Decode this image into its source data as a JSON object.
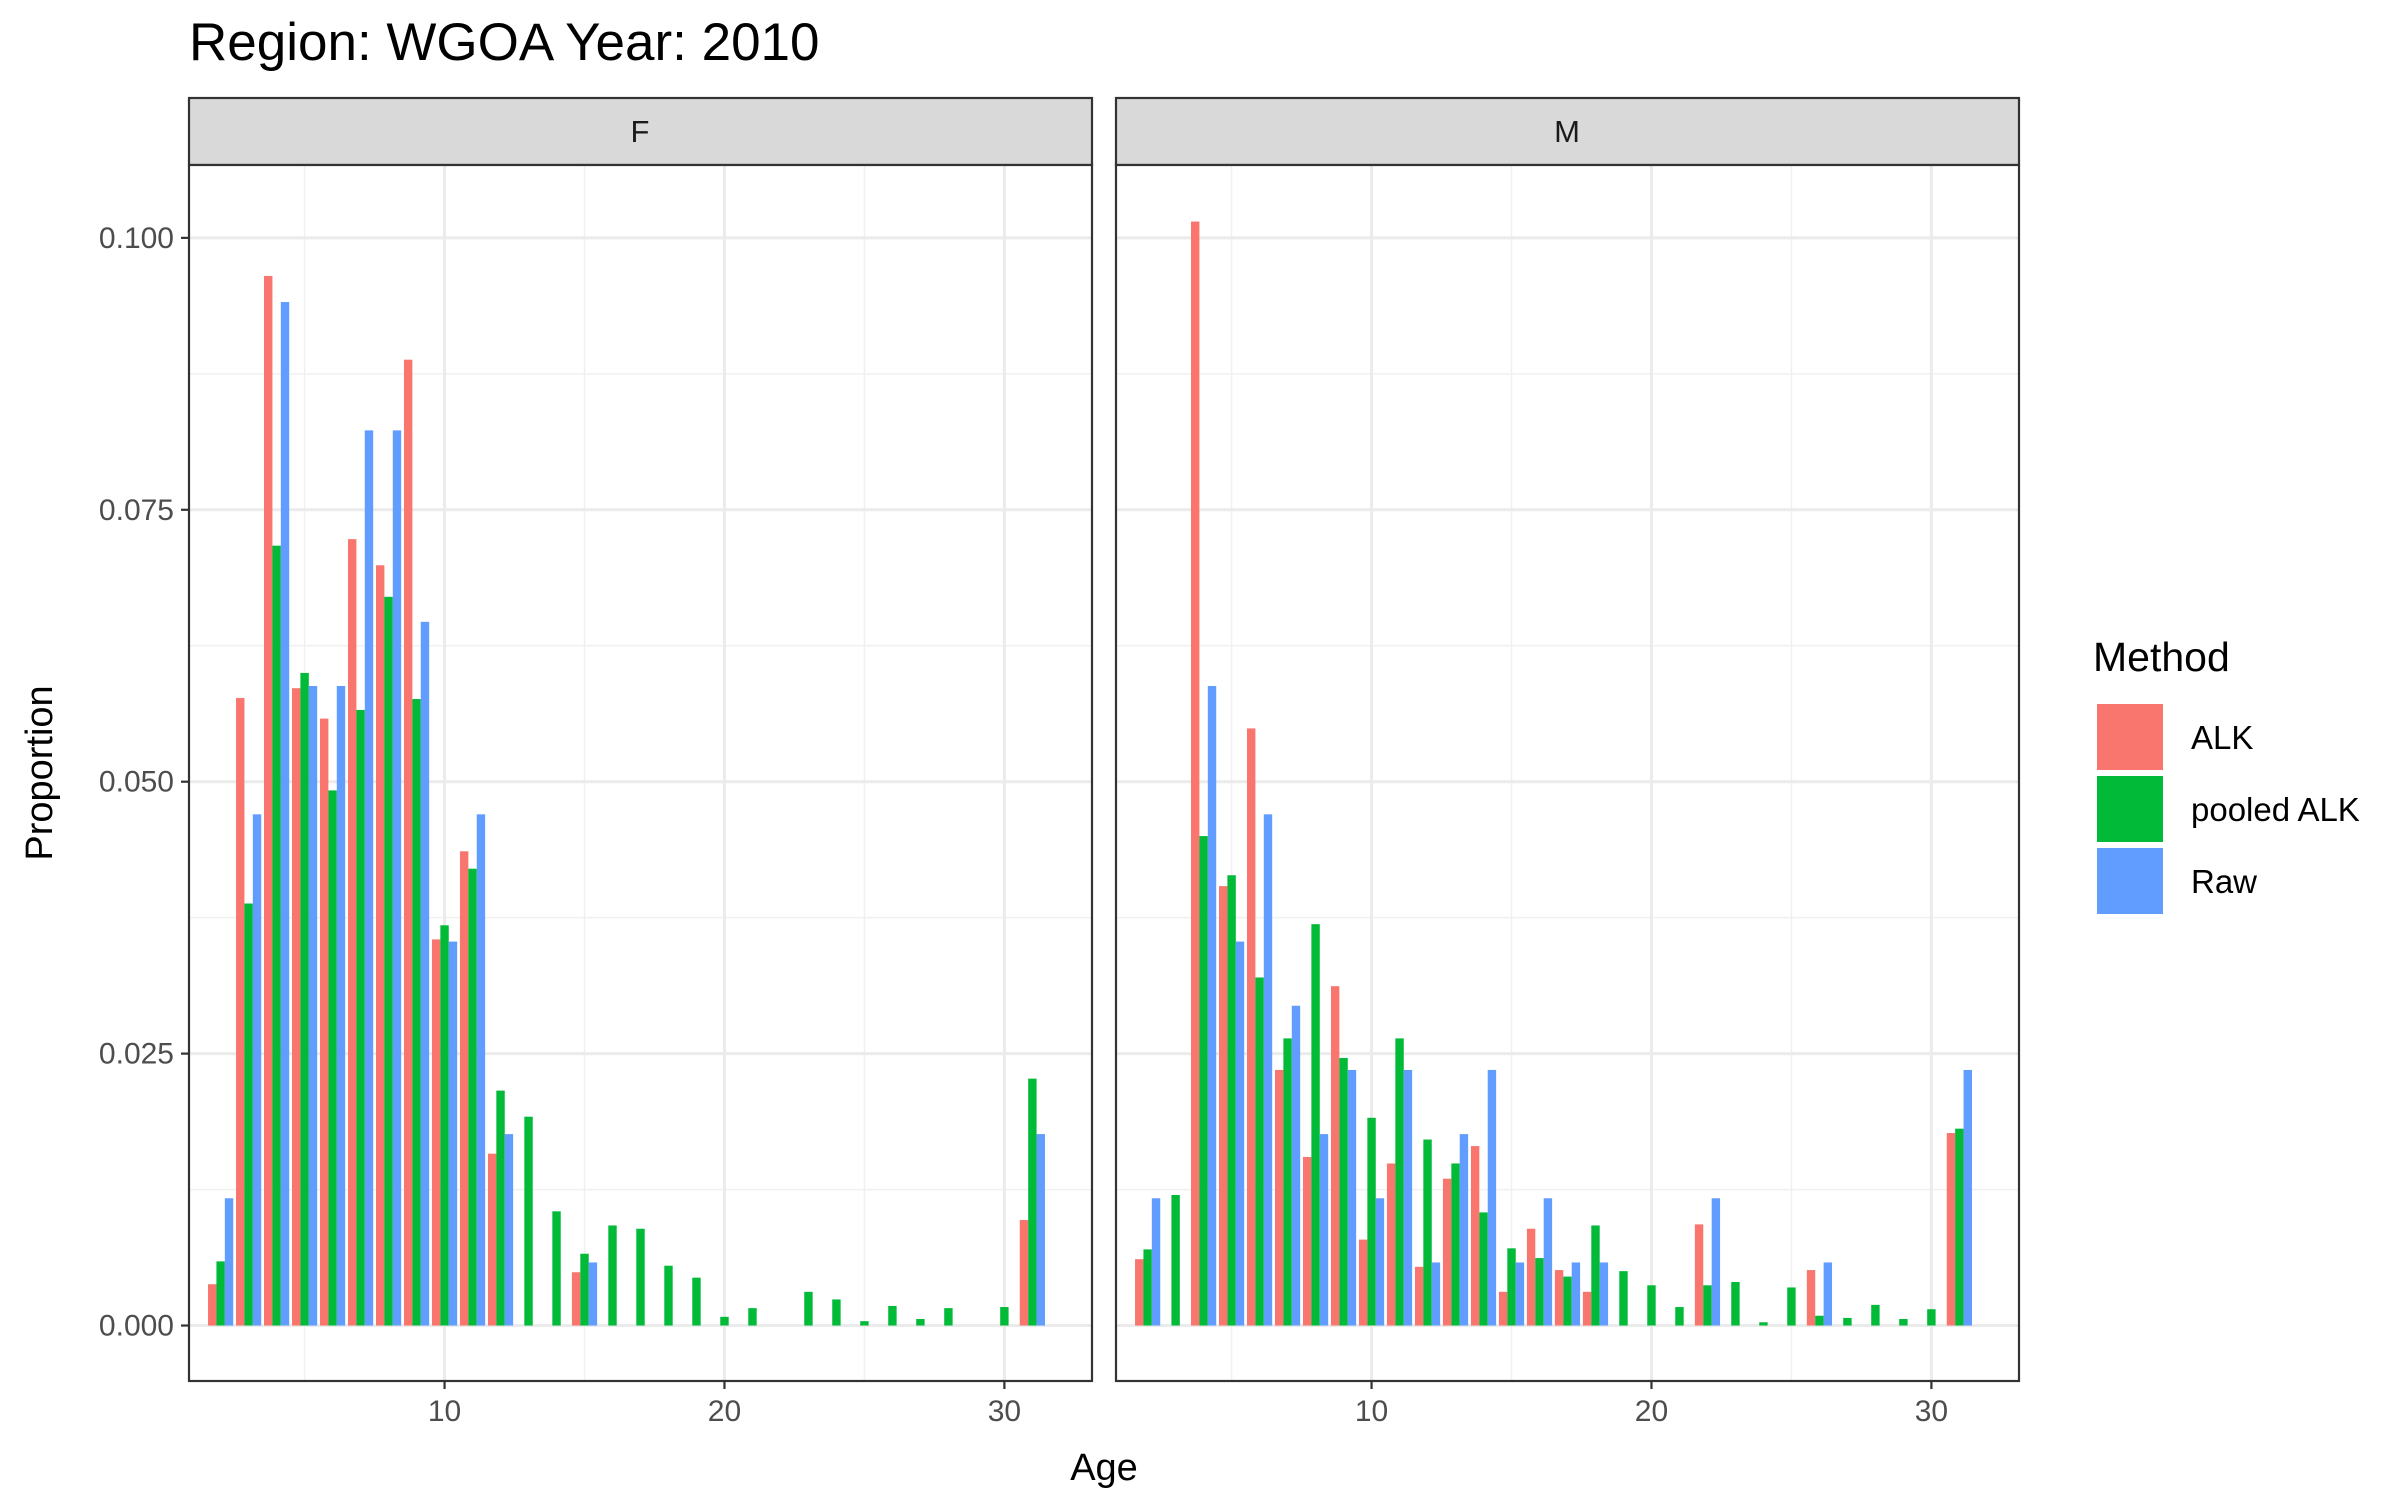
{
  "chart_data": {
    "type": "bar",
    "title": "Region: WGOA Year: 2010",
    "xlabel": "Age",
    "ylabel": "Proportion",
    "xlim": [
      0.87,
      33.13
    ],
    "ylim": [
      -0.0051,
      0.1067
    ],
    "x_ticks": [
      10,
      20,
      30
    ],
    "x_tick_labels": [
      "10",
      "20",
      "30"
    ],
    "y_ticks": [
      0,
      0.025,
      0.05,
      0.075,
      0.1
    ],
    "y_tick_labels": [
      "0.000",
      "0.025",
      "0.050",
      "0.075",
      "0.100"
    ],
    "grid": true,
    "legend": {
      "title": "Method",
      "position": "right",
      "entries": [
        "ALK",
        "pooled ALK",
        "Raw"
      ]
    },
    "colors": {
      "ALK": "#F8766D",
      "pooled ALK": "#00BA38",
      "Raw": "#619CFF"
    },
    "facets": [
      {
        "label": "F",
        "series": [
          {
            "name": "ALK",
            "points": [
              [
                2,
                0.0038
              ],
              [
                3,
                0.0577
              ],
              [
                4,
                0.0965
              ],
              [
                5,
                0.0586
              ],
              [
                6,
                0.0558
              ],
              [
                7,
                0.0723
              ],
              [
                8,
                0.0699
              ],
              [
                9,
                0.0888
              ],
              [
                10,
                0.0355
              ],
              [
                11,
                0.0436
              ],
              [
                12,
                0.0158
              ],
              [
                15,
                0.0049
              ],
              [
                31,
                0.0097
              ]
            ]
          },
          {
            "name": "pooled ALK",
            "points": [
              [
                2,
                0.0059
              ],
              [
                3,
                0.0388
              ],
              [
                4,
                0.0717
              ],
              [
                5,
                0.06
              ],
              [
                6,
                0.0492
              ],
              [
                7,
                0.0566
              ],
              [
                8,
                0.067
              ],
              [
                9,
                0.0576
              ],
              [
                10,
                0.0368
              ],
              [
                11,
                0.042
              ],
              [
                12,
                0.0216
              ],
              [
                13,
                0.0192
              ],
              [
                14,
                0.0105
              ],
              [
                15,
                0.0066
              ],
              [
                16,
                0.0092
              ],
              [
                17,
                0.0089
              ],
              [
                18,
                0.0055
              ],
              [
                19,
                0.0044
              ],
              [
                20,
                0.0008
              ],
              [
                21,
                0.0016
              ],
              [
                23,
                0.0031
              ],
              [
                24,
                0.0024
              ],
              [
                25,
                0.0004
              ],
              [
                26,
                0.0018
              ],
              [
                27,
                0.0006
              ],
              [
                28,
                0.0016
              ],
              [
                30,
                0.0017
              ],
              [
                31,
                0.0227
              ]
            ]
          },
          {
            "name": "Raw",
            "points": [
              [
                2,
                0.0117
              ],
              [
                3,
                0.047
              ],
              [
                4,
                0.0941
              ],
              [
                5,
                0.0588
              ],
              [
                6,
                0.0588
              ],
              [
                7,
                0.0823
              ],
              [
                8,
                0.0823
              ],
              [
                9,
                0.0647
              ],
              [
                10,
                0.0353
              ],
              [
                11,
                0.047
              ],
              [
                12,
                0.0176
              ],
              [
                15,
                0.0058
              ],
              [
                31,
                0.0176
              ]
            ]
          }
        ]
      },
      {
        "label": "M",
        "series": [
          {
            "name": "ALK",
            "points": [
              [
                2,
                0.0061
              ],
              [
                4,
                0.1015
              ],
              [
                5,
                0.0404
              ],
              [
                6,
                0.0549
              ],
              [
                7,
                0.0235
              ],
              [
                8,
                0.0155
              ],
              [
                9,
                0.0312
              ],
              [
                10,
                0.0079
              ],
              [
                11,
                0.0149
              ],
              [
                12,
                0.0054
              ],
              [
                13,
                0.0135
              ],
              [
                14,
                0.0165
              ],
              [
                15,
                0.0031
              ],
              [
                16,
                0.0089
              ],
              [
                17,
                0.0051
              ],
              [
                18,
                0.0031
              ],
              [
                22,
                0.0093
              ],
              [
                26,
                0.0051
              ],
              [
                31,
                0.0177
              ]
            ]
          },
          {
            "name": "pooled ALK",
            "points": [
              [
                2,
                0.007
              ],
              [
                3,
                0.012
              ],
              [
                4,
                0.045
              ],
              [
                5,
                0.0414
              ],
              [
                6,
                0.032
              ],
              [
                7,
                0.0264
              ],
              [
                8,
                0.0369
              ],
              [
                9,
                0.0246
              ],
              [
                10,
                0.0191
              ],
              [
                11,
                0.0264
              ],
              [
                12,
                0.0171
              ],
              [
                13,
                0.0149
              ],
              [
                14,
                0.0104
              ],
              [
                15,
                0.0071
              ],
              [
                16,
                0.0062
              ],
              [
                17,
                0.0045
              ],
              [
                18,
                0.0092
              ],
              [
                19,
                0.005
              ],
              [
                20,
                0.0037
              ],
              [
                21,
                0.0017
              ],
              [
                22,
                0.0037
              ],
              [
                23,
                0.004
              ],
              [
                24,
                0.0003
              ],
              [
                25,
                0.0035
              ],
              [
                26,
                0.0009
              ],
              [
                27,
                0.0007
              ],
              [
                28,
                0.0019
              ],
              [
                29,
                0.0006
              ],
              [
                30,
                0.0015
              ],
              [
                31,
                0.0181
              ]
            ]
          },
          {
            "name": "Raw",
            "points": [
              [
                2,
                0.0117
              ],
              [
                4,
                0.0588
              ],
              [
                5,
                0.0353
              ],
              [
                6,
                0.047
              ],
              [
                7,
                0.0294
              ],
              [
                8,
                0.0176
              ],
              [
                9,
                0.0235
              ],
              [
                10,
                0.0117
              ],
              [
                11,
                0.0235
              ],
              [
                12,
                0.0058
              ],
              [
                13,
                0.0176
              ],
              [
                14,
                0.0235
              ],
              [
                15,
                0.0058
              ],
              [
                16,
                0.0117
              ],
              [
                17,
                0.0058
              ],
              [
                18,
                0.0058
              ],
              [
                22,
                0.0117
              ],
              [
                26,
                0.0058
              ],
              [
                31,
                0.0235
              ]
            ]
          }
        ]
      }
    ]
  }
}
